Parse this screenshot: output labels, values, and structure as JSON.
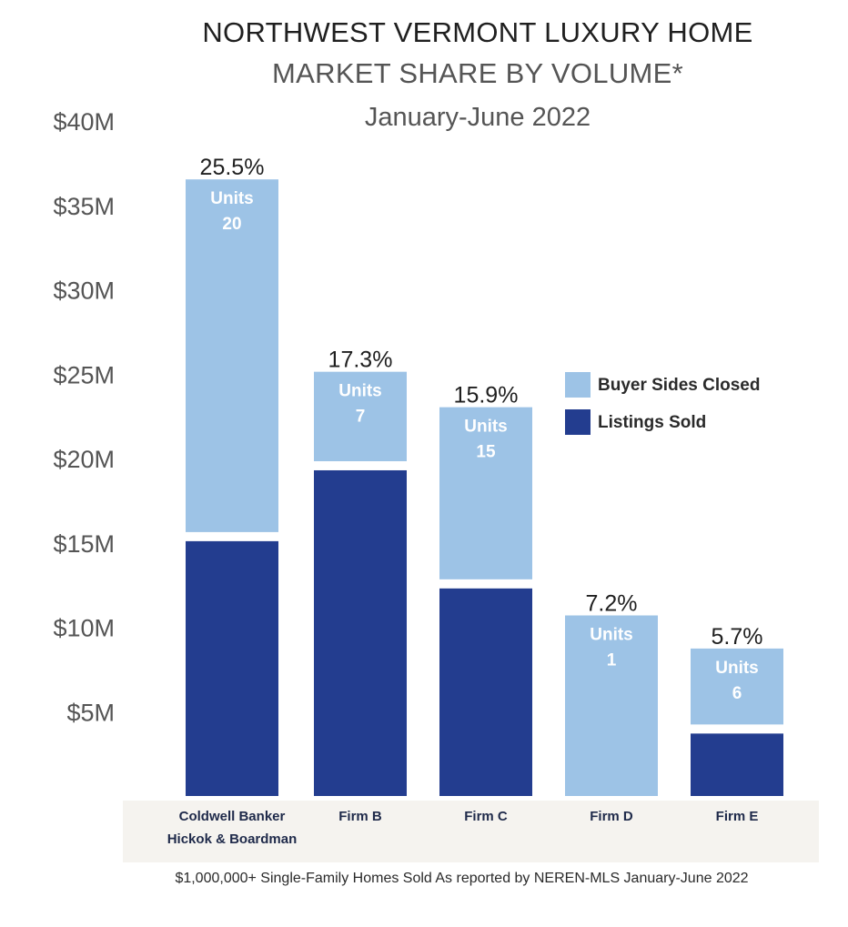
{
  "header": {
    "title": "NORTHWEST VERMONT LUXURY HOME",
    "subtitle": "MARKET SHARE BY VOLUME*",
    "period": "January-June 2022"
  },
  "footnote": "$1,000,000+ Single-Family Homes Sold As reported by NEREN-MLS January-June 2022",
  "colors": {
    "buyer_sides": "#9dc3e6",
    "listings_sold": "#233d8f",
    "category_band": "#f5f3ef"
  },
  "chart_data": {
    "type": "bar",
    "stacked": true,
    "title": "NORTHWEST VERMONT LUXURY HOME MARKET SHARE BY VOLUME*",
    "xlabel": "",
    "ylabel": "",
    "ylim": [
      0,
      40
    ],
    "yticks": [
      {
        "value": 5,
        "label": "$5M"
      },
      {
        "value": 10,
        "label": "$10M"
      },
      {
        "value": 15,
        "label": "$15M"
      },
      {
        "value": 20,
        "label": "$20M"
      },
      {
        "value": 25,
        "label": "$25M"
      },
      {
        "value": 30,
        "label": "$30M"
      },
      {
        "value": 35,
        "label": "$35M"
      },
      {
        "value": 40,
        "label": "$40M"
      }
    ],
    "categories": [
      [
        "Coldwell Banker",
        "Hickok & Boardman"
      ],
      [
        "Firm B"
      ],
      [
        "Firm C"
      ],
      [
        "Firm D"
      ],
      [
        "Firm E"
      ]
    ],
    "series": [
      {
        "name": "Listings Sold",
        "values": [
          15.1,
          19.3,
          12.3,
          0,
          3.7
        ]
      },
      {
        "name": "Buyer Sides Closed",
        "values": [
          20.9,
          5.3,
          10.2,
          10.7,
          4.5
        ]
      }
    ],
    "share_labels": [
      "25.5%",
      "17.3%",
      "15.9%",
      "7.2%",
      "5.7%"
    ],
    "units_label": "Units",
    "units": [
      "20",
      "7",
      "15",
      "1",
      "6"
    ],
    "legend": {
      "placement": "right",
      "entries": [
        "Buyer Sides Closed",
        "Listings Sold"
      ]
    },
    "grid": false
  }
}
